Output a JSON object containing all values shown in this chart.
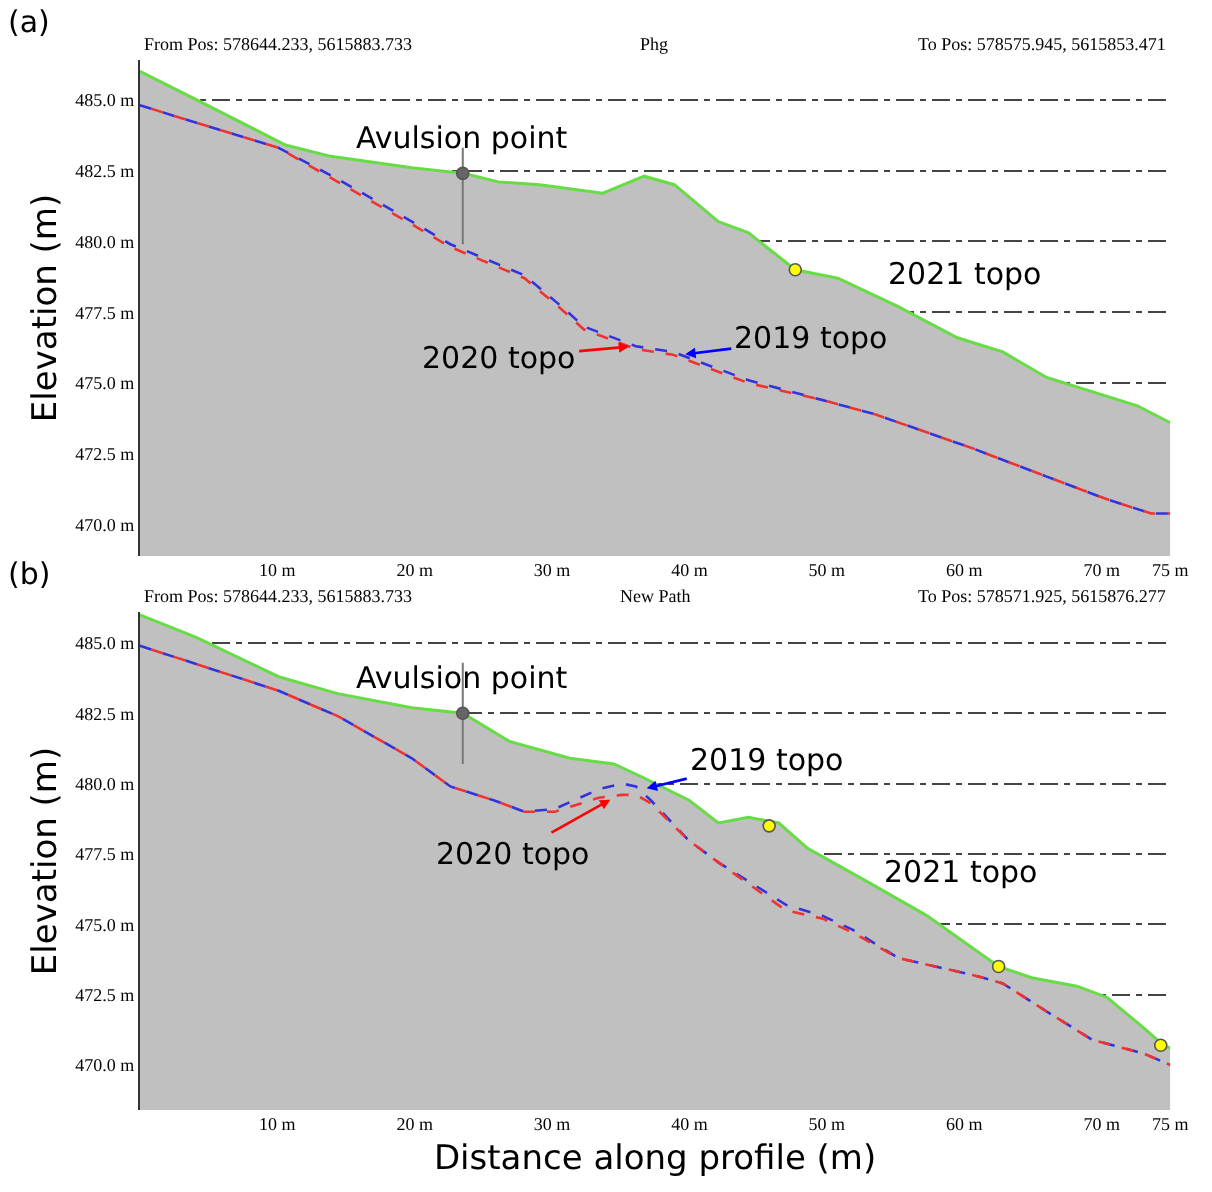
{
  "chart_data": [
    {
      "type": "area",
      "title": "(a)",
      "ylabel": "Elevation (m)",
      "grid": "y",
      "annotations": [
        "From Pos: 578644.233, 5615883.733",
        "Phg",
        "To Pos: 578575.945, 5615853.471",
        {
          "text": "Avulsion point",
          "x": 23.5,
          "y": 482.4
        },
        {
          "text": "2019 topo",
          "x": 39.4,
          "y": 476.0
        },
        {
          "text": "2020 topo",
          "x": 35.9,
          "y": 476.3
        },
        "2021 topo"
      ],
      "xlim": [
        0,
        75
      ],
      "ylim": [
        468.9,
        486.4
      ],
      "xticks": [
        {
          "value": 10,
          "label": "10 m"
        },
        {
          "value": 20,
          "label": "20 m"
        },
        {
          "value": 30,
          "label": "30 m"
        },
        {
          "value": 40,
          "label": "40 m"
        },
        {
          "value": 50,
          "label": "50 m"
        },
        {
          "value": 60,
          "label": "60 m"
        },
        {
          "value": 70,
          "label": "70 m"
        },
        {
          "value": 75,
          "label": "75 m"
        }
      ],
      "yticks": [
        {
          "value": 470,
          "label": "470.0 m"
        },
        {
          "value": 472.5,
          "label": "472.5 m"
        },
        {
          "value": 475,
          "label": "475.0 m"
        },
        {
          "value": 477.5,
          "label": "477.5 m"
        },
        {
          "value": 480,
          "label": "480.0 m"
        },
        {
          "value": 482.5,
          "label": "482.5 m"
        },
        {
          "value": 485,
          "label": "485.0 m"
        }
      ],
      "series": [
        {
          "color": "#c0c0c0",
          "x": [
            0,
            4.1,
            10.6,
            13.9,
            19.8,
            23.6,
            26.1,
            29.1,
            33.7,
            36.7,
            38.9,
            42.1,
            44.3,
            47.7,
            50.8,
            55.2,
            59.5,
            62.8,
            66.0,
            69.3,
            72.6,
            75
          ],
          "values": [
            486.0,
            485.0,
            483.4,
            483.0,
            482.6,
            482.4,
            482.1,
            482.0,
            481.7,
            482.3,
            482.0,
            480.7,
            480.3,
            479.0,
            478.7,
            477.7,
            476.6,
            476.1,
            475.2,
            474.7,
            474.2,
            473.6
          ]
        },
        {
          "type": "line",
          "color": "#3333dd",
          "line_style": "dashed",
          "x": [
            0,
            10.1,
            14.4,
            19.8,
            22.6,
            28.0,
            30.7,
            32.3,
            36.1,
            38.8,
            44.3,
            49.7,
            53.5,
            60.6,
            66.0,
            70.4,
            73.6,
            75
          ],
          "values": [
            484.8,
            483.3,
            482.2,
            480.7,
            479.9,
            478.8,
            477.7,
            477.0,
            476.3,
            476.1,
            475.1,
            474.4,
            473.9,
            472.7,
            471.7,
            470.9,
            470.4,
            470.4
          ]
        },
        {
          "type": "line",
          "color": "#ee3333",
          "line_style": "dashed",
          "x": [
            0,
            10.1,
            14.4,
            19.8,
            22.6,
            28.0,
            30.7,
            32.3,
            36.1,
            38.8,
            44.3,
            49.7,
            53.5,
            60.6,
            66.0,
            70.4,
            73.6,
            75
          ],
          "values": [
            484.8,
            483.3,
            482.1,
            480.6,
            479.8,
            478.7,
            477.6,
            476.9,
            476.2,
            476.0,
            475.0,
            474.4,
            473.9,
            472.7,
            471.7,
            470.9,
            470.4,
            470.4
          ]
        },
        {
          "type": "scatter",
          "marker": "circle",
          "color": "#ffff00",
          "x": [
            47.7
          ],
          "values": [
            479.0
          ]
        },
        {
          "type": "scatter",
          "marker": "circle",
          "color": "#666666",
          "x": [
            23.5
          ],
          "values": [
            482.4
          ],
          "errors": [
            [
              479.9,
              483.3
            ]
          ]
        }
      ]
    },
    {
      "type": "area",
      "title": "(b)",
      "ylabel": "Elevation (m)",
      "xlabel": "Distance along profile (m)",
      "grid": "y",
      "annotations": [
        "From Pos: 578644.233, 5615883.733",
        "New Path",
        "To Pos: 578571.925, 5615876.277",
        {
          "text": "Avulsion point",
          "x": 23.5,
          "y": 482.5
        },
        {
          "text": "2019 topo",
          "x": 36.6,
          "y": 479.8
        },
        {
          "text": "2020 topo",
          "x": 34.5,
          "y": 479.5
        },
        "2021 topo"
      ],
      "xlim": [
        0,
        75
      ],
      "ylim": [
        468.4,
        486.1
      ],
      "xticks": [
        {
          "value": 10,
          "label": "10 m"
        },
        {
          "value": 20,
          "label": "20 m"
        },
        {
          "value": 30,
          "label": "30 m"
        },
        {
          "value": 40,
          "label": "40 m"
        },
        {
          "value": 50,
          "label": "50 m"
        },
        {
          "value": 60,
          "label": "60 m"
        },
        {
          "value": 70,
          "label": "70 m"
        },
        {
          "value": 75,
          "label": "75 m"
        }
      ],
      "yticks": [
        {
          "value": 470,
          "label": "470.0 m"
        },
        {
          "value": 472.5,
          "label": "472.5 m"
        },
        {
          "value": 475,
          "label": "475.0 m"
        },
        {
          "value": 477.5,
          "label": "477.5 m"
        },
        {
          "value": 480,
          "label": "480.0 m"
        },
        {
          "value": 482.5,
          "label": "482.5 m"
        },
        {
          "value": 485,
          "label": "485.0 m"
        }
      ],
      "series": [
        {
          "color": "#c0c0c0",
          "x": [
            0,
            4.1,
            10.1,
            14.4,
            19.8,
            23.5,
            26.9,
            31.3,
            34.5,
            36.7,
            40.0,
            42.1,
            44.3,
            46.5,
            48.6,
            53.0,
            57.3,
            62.5,
            64.9,
            68.2,
            70.4,
            73.1,
            74.5,
            75
          ],
          "values": [
            486.0,
            485.2,
            483.8,
            483.2,
            482.7,
            482.5,
            481.5,
            480.9,
            480.7,
            480.2,
            479.4,
            478.6,
            478.8,
            478.6,
            477.7,
            476.5,
            475.3,
            473.5,
            473.1,
            472.8,
            472.4,
            471.3,
            470.7,
            470.6
          ]
        },
        {
          "type": "line",
          "color": "#3333dd",
          "line_style": "dashed",
          "x": [
            0,
            10.1,
            14.4,
            19.8,
            22.6,
            25.8,
            28.0,
            30.2,
            33.4,
            35.1,
            36.1,
            37.2,
            39.9,
            42.1,
            47.0,
            49.7,
            51.9,
            55.2,
            57.9,
            60.6,
            62.8,
            66.0,
            69.3,
            73.1,
            75
          ],
          "values": [
            484.9,
            483.3,
            482.4,
            480.9,
            479.9,
            479.4,
            479.0,
            479.1,
            479.8,
            480.0,
            479.9,
            479.4,
            478.0,
            477.2,
            475.7,
            475.3,
            474.8,
            473.8,
            473.5,
            473.2,
            472.9,
            471.9,
            470.9,
            470.4,
            470.0
          ]
        },
        {
          "type": "line",
          "color": "#ee3333",
          "line_style": "dashed",
          "x": [
            0,
            10.1,
            14.4,
            19.8,
            22.6,
            25.8,
            28.0,
            30.2,
            33.4,
            35.1,
            36.1,
            37.2,
            39.9,
            42.1,
            47.0,
            49.7,
            51.9,
            55.2,
            57.9,
            60.6,
            62.8,
            66.0,
            69.3,
            73.1,
            75
          ],
          "values": [
            484.9,
            483.3,
            482.4,
            480.9,
            479.9,
            479.4,
            479.0,
            479.0,
            479.5,
            479.6,
            479.6,
            479.3,
            478.0,
            477.2,
            475.5,
            475.2,
            474.7,
            473.8,
            473.5,
            473.2,
            472.9,
            471.9,
            470.9,
            470.4,
            470.0
          ]
        },
        {
          "type": "scatter",
          "marker": "circle",
          "color": "#ffff00",
          "x": [
            45.8,
            62.5,
            74.3
          ],
          "values": [
            478.5,
            473.5,
            470.7
          ]
        },
        {
          "type": "scatter",
          "marker": "circle",
          "color": "#666666",
          "x": [
            23.5
          ],
          "values": [
            482.5
          ],
          "errors": [
            [
              480.7,
              484.3
            ]
          ]
        }
      ]
    }
  ]
}
